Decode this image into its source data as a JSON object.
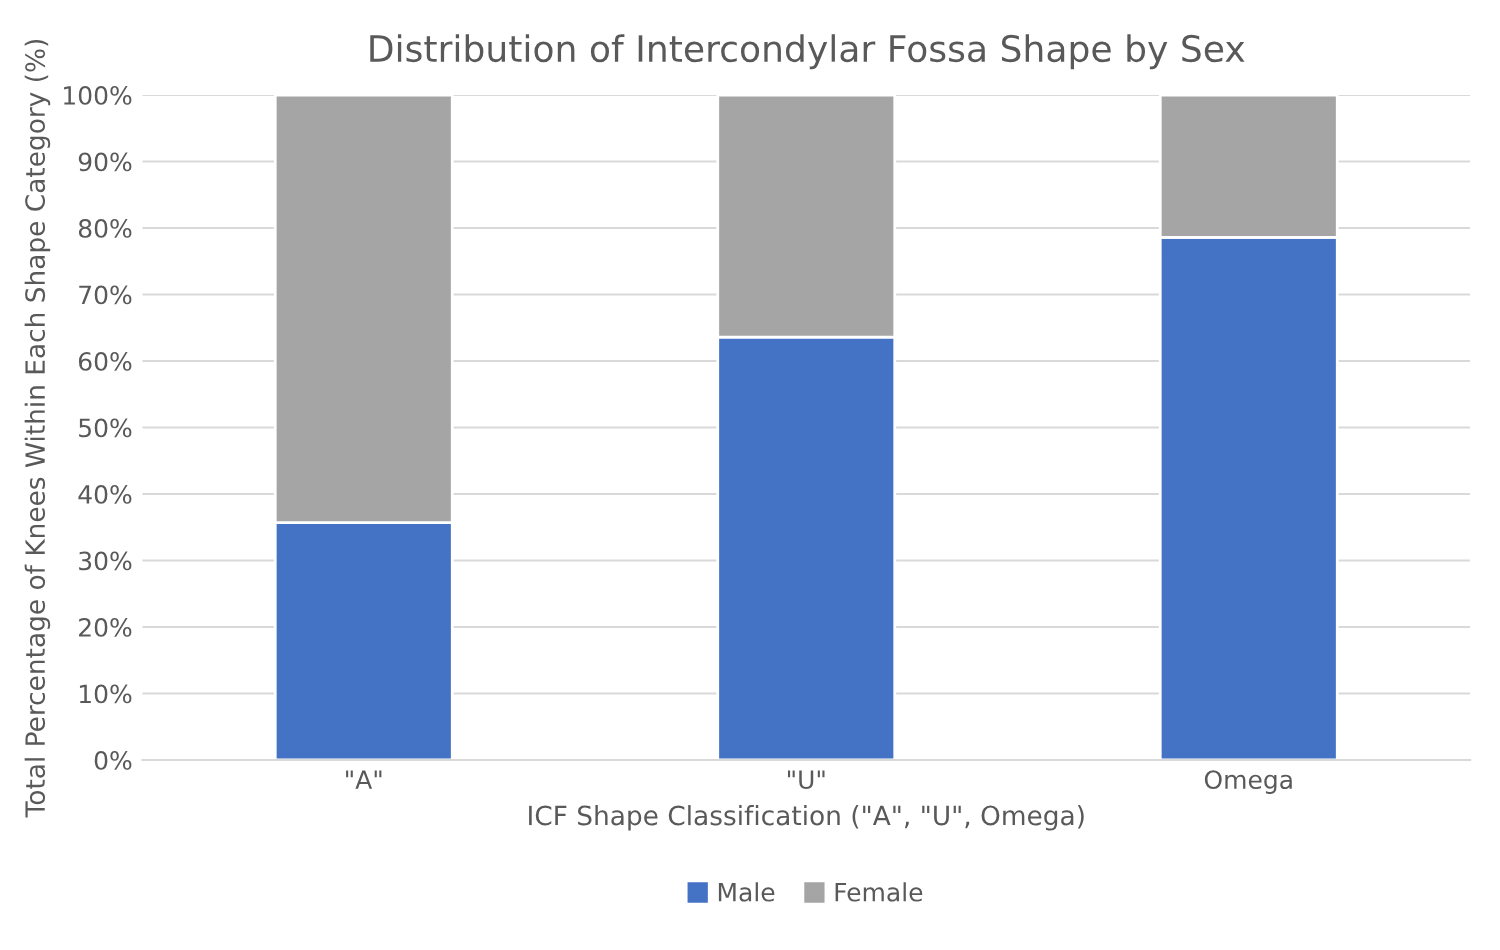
{
  "chart_data": {
    "type": "bar",
    "title": "Distribution of Intercondylar Fossa Shape by Sex",
    "xlabel": "ICF Shape Classification (\"A\", \"U\", Omega)",
    "ylabel": "Total Percentage of Knees Within Each Shape Category (%)",
    "categories": [
      "\"A\"",
      "\"U\"",
      "Omega"
    ],
    "stacked": true,
    "series": [
      {
        "name": "Male",
        "color": "#4472c4",
        "values": [
          35.7,
          63.6,
          78.6
        ]
      },
      {
        "name": "Female",
        "color": "#a5a5a5",
        "values": [
          64.3,
          36.4,
          21.4
        ]
      }
    ],
    "ylim": [
      0,
      100
    ],
    "yticks": [
      {
        "value": 0,
        "label": "0%"
      },
      {
        "value": 10,
        "label": "10%"
      },
      {
        "value": 20,
        "label": "20%"
      },
      {
        "value": 30,
        "label": "30%"
      },
      {
        "value": 40,
        "label": "40%"
      },
      {
        "value": 50,
        "label": "50%"
      },
      {
        "value": 60,
        "label": "60%"
      },
      {
        "value": 70,
        "label": "70%"
      },
      {
        "value": 80,
        "label": "80%"
      },
      {
        "value": 90,
        "label": "90%"
      },
      {
        "value": 100,
        "label": "100%"
      }
    ],
    "grid": "y",
    "legend": "bottom"
  }
}
